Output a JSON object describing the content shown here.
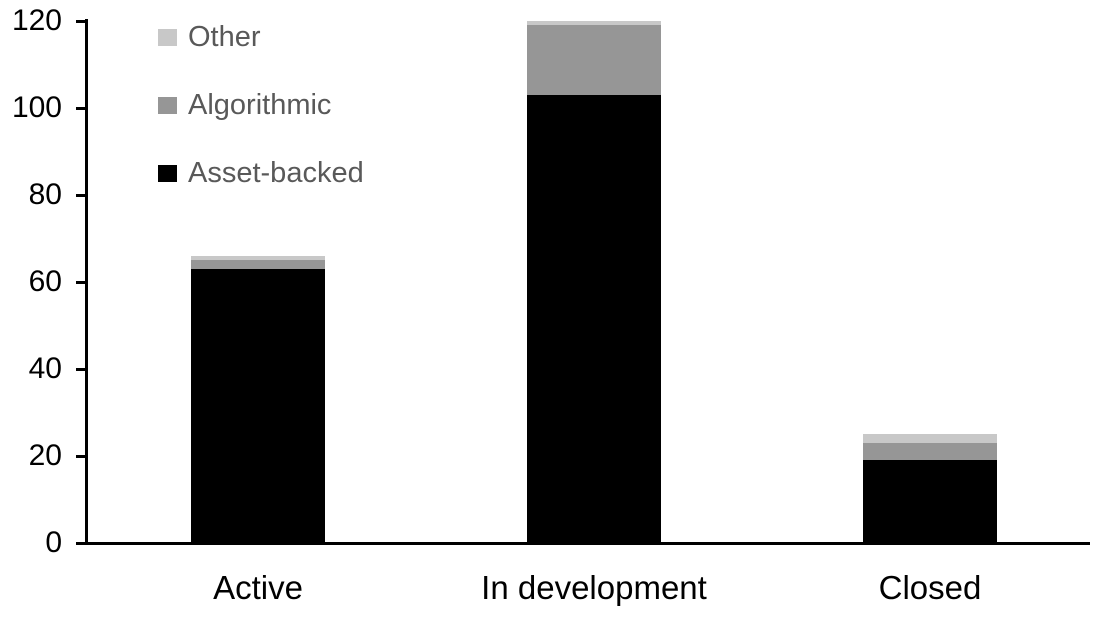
{
  "chart_data": {
    "type": "bar",
    "stacked": true,
    "title": "",
    "categories": [
      "Active",
      "In development",
      "Closed"
    ],
    "series": [
      {
        "name": "Asset-backed",
        "color": "#000000",
        "values": [
          63,
          103,
          19
        ]
      },
      {
        "name": "Algorithmic",
        "color": "#969696",
        "values": [
          2,
          16,
          4
        ]
      },
      {
        "name": "Other",
        "color": "#c8c8c8",
        "values": [
          1,
          1,
          2
        ]
      }
    ],
    "totals": [
      66,
      120,
      25
    ],
    "yticks": [
      0,
      20,
      40,
      60,
      80,
      100,
      120
    ],
    "ylim": [
      0,
      120
    ],
    "grid": false,
    "legend": {
      "position": "top-left",
      "order": [
        "Other",
        "Algorithmic",
        "Asset-backed"
      ],
      "text_color": "#595959"
    },
    "axis_color": "#000000"
  }
}
